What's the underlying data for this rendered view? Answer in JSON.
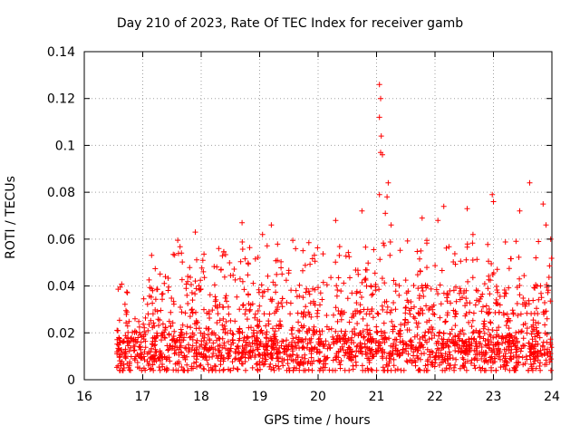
{
  "chart_data": {
    "type": "scatter",
    "title": "Day 210 of 2023, Rate Of TEC Index for receiver gamb",
    "xlabel": "GPS time / hours",
    "ylabel": "ROTI / TECUs",
    "xlim": [
      16,
      24
    ],
    "ylim": [
      0,
      0.14
    ],
    "xticks": [
      "16",
      "17",
      "18",
      "19",
      "20",
      "21",
      "22",
      "23",
      "24"
    ],
    "yticks": [
      "0",
      "0.02",
      "0.04",
      "0.06",
      "0.08",
      "0.1",
      "0.12",
      "0.14"
    ],
    "grid": true,
    "marker": "+",
    "color": "#ff0000",
    "series": [
      {
        "name": "ROTI",
        "x_range": [
          16.55,
          24.0
        ],
        "baseline_typical": 0.013,
        "dense_band": [
          0.005,
          0.03
        ],
        "outliers": [
          {
            "x": 21.05,
            "y": 0.126
          },
          {
            "x": 21.07,
            "y": 0.12
          },
          {
            "x": 21.05,
            "y": 0.112
          },
          {
            "x": 21.08,
            "y": 0.104
          },
          {
            "x": 21.07,
            "y": 0.097
          },
          {
            "x": 21.1,
            "y": 0.096
          },
          {
            "x": 21.2,
            "y": 0.084
          },
          {
            "x": 21.18,
            "y": 0.078
          },
          {
            "x": 21.05,
            "y": 0.079
          },
          {
            "x": 21.15,
            "y": 0.071
          },
          {
            "x": 20.75,
            "y": 0.072
          },
          {
            "x": 21.25,
            "y": 0.066
          },
          {
            "x": 23.62,
            "y": 0.084
          },
          {
            "x": 22.98,
            "y": 0.079
          },
          {
            "x": 23.85,
            "y": 0.075
          },
          {
            "x": 23.0,
            "y": 0.076
          },
          {
            "x": 22.15,
            "y": 0.074
          },
          {
            "x": 22.55,
            "y": 0.073
          },
          {
            "x": 23.45,
            "y": 0.072
          },
          {
            "x": 23.9,
            "y": 0.066
          },
          {
            "x": 18.7,
            "y": 0.067
          },
          {
            "x": 19.2,
            "y": 0.066
          },
          {
            "x": 20.3,
            "y": 0.068
          },
          {
            "x": 17.9,
            "y": 0.063
          },
          {
            "x": 22.05,
            "y": 0.068
          },
          {
            "x": 21.78,
            "y": 0.069
          },
          {
            "x": 23.98,
            "y": 0.06
          },
          {
            "x": 22.65,
            "y": 0.062
          },
          {
            "x": 19.05,
            "y": 0.062
          },
          {
            "x": 18.3,
            "y": 0.056
          }
        ]
      }
    ]
  }
}
